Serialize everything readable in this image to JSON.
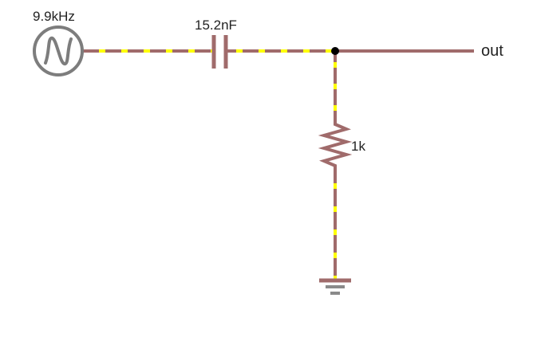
{
  "circuit": {
    "source": {
      "label": "9.9kHz",
      "icon": "ac-source-icon"
    },
    "capacitor": {
      "label": "15.2nF"
    },
    "resistor": {
      "label": "1k"
    },
    "output": {
      "label": "out"
    },
    "colors": {
      "wire": "#a06b6b",
      "current_dots": "#ffff00",
      "source": "#7d7d7d",
      "node": "#000000",
      "text": "#222222"
    }
  }
}
